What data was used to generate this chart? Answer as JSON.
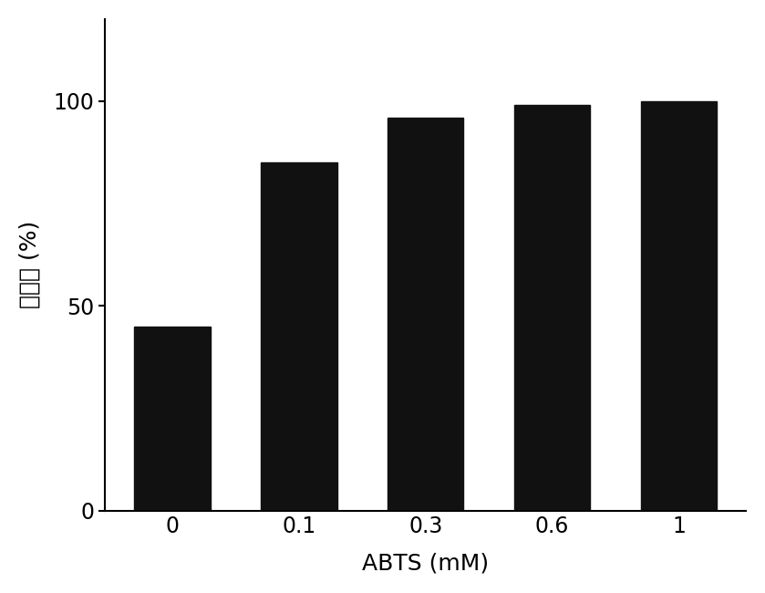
{
  "categories": [
    "0",
    "0.1",
    "0.3",
    "0.6",
    "1"
  ],
  "values": [
    45,
    85,
    96,
    99,
    100
  ],
  "bar_color": "#111111",
  "xlabel": "ABTS (mM)",
  "ylabel": "降解率 (%)",
  "ylim": [
    0,
    120
  ],
  "yticks": [
    0,
    50,
    100
  ],
  "bar_width": 0.6,
  "xlabel_fontsize": 18,
  "ylabel_fontsize": 18,
  "tick_fontsize": 17,
  "background_color": "#ffffff"
}
